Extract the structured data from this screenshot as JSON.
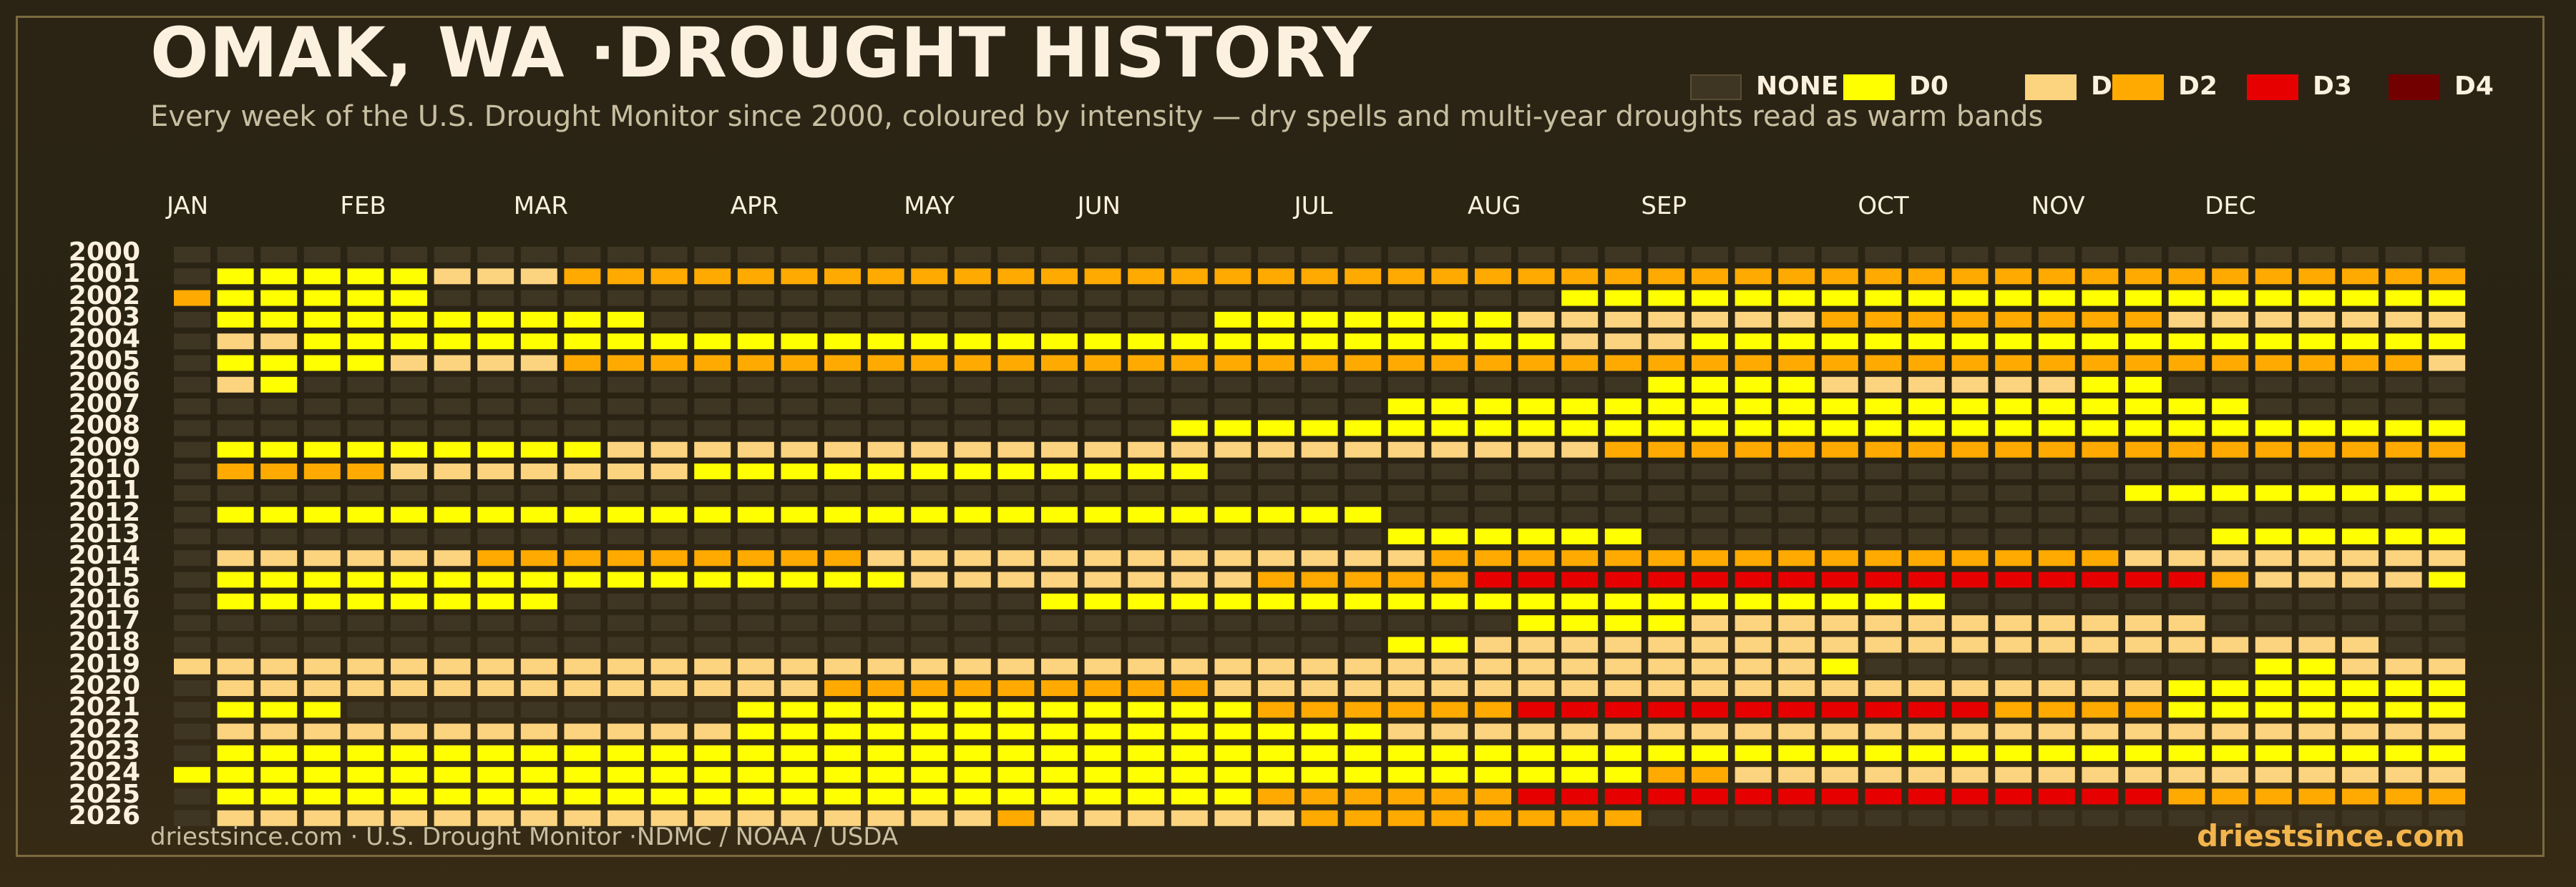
{
  "title": "OMAK, WA ·DROUGHT HISTORY",
  "subtitle": "Every week of the U.S. Drought Monitor since 2000, coloured by intensity — dry spells and multi-year droughts read as warm bands",
  "footer": {
    "source": "driestsince.com  · U.S. Drought Monitor ·NDMC / NOAA / USDA",
    "brand": "driestsince.com"
  },
  "legend": [
    {
      "label": "NONE",
      "color": "#3e3523"
    },
    {
      "label": "D0",
      "color": "#ffff00"
    },
    {
      "label": "D1",
      "color": "#fcd37f"
    },
    {
      "label": "D2",
      "color": "#ffaa00"
    },
    {
      "label": "D3",
      "color": "#e60000"
    },
    {
      "label": "D4",
      "color": "#730000"
    }
  ],
  "chart_data": {
    "type": "heatmap",
    "title": "OMAK, WA ·DROUGHT HISTORY",
    "x_unit": "week of year",
    "months": [
      {
        "label": "JAN",
        "week": 1
      },
      {
        "label": "FEB",
        "week": 5
      },
      {
        "label": "MAR",
        "week": 9
      },
      {
        "label": "APR",
        "week": 14
      },
      {
        "label": "MAY",
        "week": 18
      },
      {
        "label": "JUN",
        "week": 22
      },
      {
        "label": "JUL",
        "week": 27
      },
      {
        "label": "AUG",
        "week": 31
      },
      {
        "label": "SEP",
        "week": 35
      },
      {
        "label": "OCT",
        "week": 40
      },
      {
        "label": "NOV",
        "week": 44
      },
      {
        "label": "DEC",
        "week": 48
      }
    ],
    "years": [
      "2000",
      "2001",
      "2002",
      "2003",
      "2004",
      "2005",
      "2006",
      "2007",
      "2008",
      "2009",
      "2010",
      "2011",
      "2012",
      "2013",
      "2014",
      "2015",
      "2016",
      "2017",
      "2018",
      "2019",
      "2020",
      "2021",
      "2022",
      "2023",
      "2024",
      "2025",
      "2026"
    ],
    "levels": [
      "NONE",
      "D0",
      "D1",
      "D2",
      "D3",
      "D4"
    ],
    "weeks_per_year": 53,
    "rows": {
      "2000": [],
      "2001": [
        [
          2,
          6,
          1
        ],
        [
          7,
          9,
          2
        ],
        [
          10,
          53,
          3
        ]
      ],
      "2002": [
        [
          1,
          1,
          3
        ],
        [
          2,
          6,
          1
        ],
        [
          33,
          53,
          1
        ]
      ],
      "2003": [
        [
          2,
          11,
          1
        ],
        [
          25,
          31,
          1
        ],
        [
          32,
          33,
          2
        ],
        [
          34,
          53,
          2
        ],
        [
          39,
          53,
          3
        ],
        [
          47,
          53,
          2
        ]
      ],
      "2004": [
        [
          2,
          3,
          2
        ],
        [
          4,
          12,
          1
        ],
        [
          13,
          53,
          1
        ],
        [
          33,
          35,
          2
        ]
      ],
      "2005": [
        [
          2,
          5,
          1
        ],
        [
          6,
          9,
          2
        ],
        [
          10,
          52,
          3
        ],
        [
          53,
          53,
          2
        ]
      ],
      "2006": [
        [
          2,
          2,
          2
        ],
        [
          3,
          3,
          1
        ],
        [
          35,
          38,
          1
        ],
        [
          39,
          44,
          2
        ],
        [
          45,
          46,
          1
        ]
      ],
      "2007": [
        [
          29,
          48,
          1
        ]
      ],
      "2008": [
        [
          24,
          53,
          1
        ]
      ],
      "2009": [
        [
          2,
          10,
          1
        ],
        [
          11,
          33,
          2
        ],
        [
          34,
          53,
          3
        ]
      ],
      "2010": [
        [
          2,
          5,
          3
        ],
        [
          6,
          7,
          2
        ],
        [
          8,
          12,
          2
        ],
        [
          13,
          17,
          1
        ],
        [
          18,
          24,
          1
        ]
      ],
      "2011": [
        [
          46,
          53,
          1
        ]
      ],
      "2012": [
        [
          2,
          28,
          1
        ]
      ],
      "2013": [
        [
          29,
          29,
          1
        ],
        [
          30,
          34,
          1
        ],
        [
          48,
          53,
          1
        ]
      ],
      "2014": [
        [
          2,
          7,
          2
        ],
        [
          8,
          16,
          3
        ],
        [
          17,
          29,
          2
        ],
        [
          30,
          53,
          3
        ],
        [
          46,
          53,
          2
        ]
      ],
      "2015": [
        [
          2,
          17,
          1
        ],
        [
          18,
          25,
          2
        ],
        [
          26,
          30,
          3
        ],
        [
          31,
          47,
          4
        ],
        [
          48,
          48,
          3
        ],
        [
          49,
          52,
          2
        ],
        [
          53,
          53,
          1
        ]
      ],
      "2016": [
        [
          2,
          9,
          1
        ],
        [
          21,
          31,
          1
        ],
        [
          32,
          41,
          1
        ]
      ],
      "2017": [
        [
          32,
          35,
          1
        ],
        [
          36,
          47,
          2
        ]
      ],
      "2018": [
        [
          29,
          30,
          1
        ],
        [
          31,
          47,
          2
        ],
        [
          48,
          51,
          2
        ]
      ],
      "2019": [
        [
          1,
          29,
          2
        ],
        [
          30,
          38,
          2
        ],
        [
          39,
          39,
          1
        ],
        [
          49,
          50,
          1
        ],
        [
          51,
          53,
          2
        ]
      ],
      "2020": [
        [
          2,
          15,
          2
        ],
        [
          16,
          24,
          3
        ],
        [
          25,
          46,
          2
        ],
        [
          47,
          53,
          1
        ]
      ],
      "2021": [
        [
          2,
          4,
          1
        ],
        [
          14,
          25,
          1
        ],
        [
          26,
          31,
          3
        ],
        [
          32,
          42,
          4
        ],
        [
          43,
          46,
          3
        ],
        [
          47,
          53,
          1
        ]
      ],
      "2022": [
        [
          2,
          13,
          2
        ],
        [
          14,
          53,
          1
        ],
        [
          29,
          53,
          2
        ]
      ],
      "2023": [
        [
          2,
          53,
          1
        ]
      ],
      "2024": [
        [
          1,
          1,
          1
        ],
        [
          2,
          53,
          1
        ],
        [
          35,
          36,
          3
        ],
        [
          37,
          53,
          2
        ]
      ],
      "2025": [
        [
          2,
          25,
          1
        ],
        [
          26,
          31,
          3
        ],
        [
          32,
          46,
          4
        ],
        [
          47,
          53,
          3
        ]
      ],
      "2026": [
        [
          2,
          19,
          2
        ],
        [
          20,
          20,
          3
        ],
        [
          21,
          26,
          2
        ],
        [
          27,
          30,
          3
        ],
        [
          31,
          34,
          3
        ]
      ]
    }
  }
}
